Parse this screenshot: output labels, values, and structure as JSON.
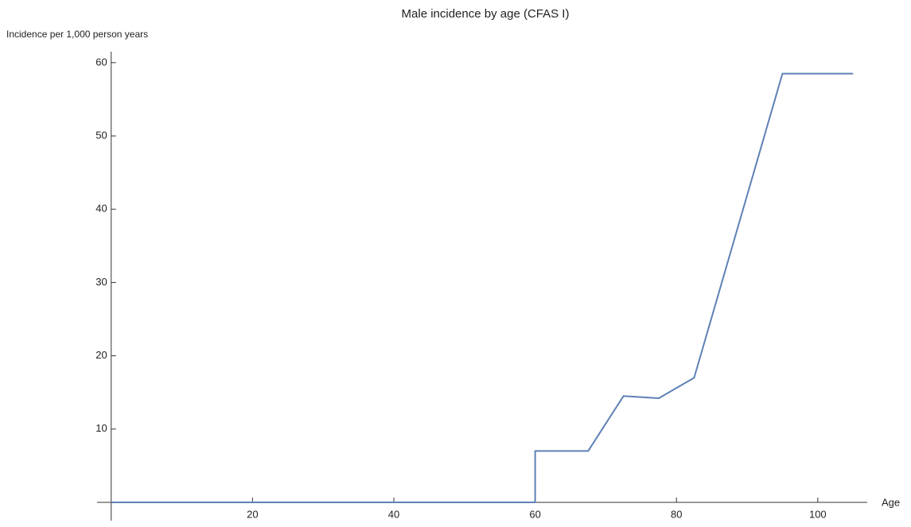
{
  "chart_data": {
    "type": "line",
    "title": "Male incidence by age (CFAS I)",
    "y_label": "Incidence per 1,000 person years",
    "x_label": "Age",
    "x": [
      0,
      60,
      60,
      67.5,
      72.5,
      77.5,
      82.5,
      95,
      105
    ],
    "series": [
      {
        "name": "Male incidence",
        "color": "#5e81b5",
        "values": [
          0,
          0,
          7,
          7,
          14.5,
          14.2,
          17,
          58.5,
          58.5
        ]
      }
    ],
    "xlim": [
      -2,
      107
    ],
    "ylim": [
      -2.5,
      61.5
    ],
    "xticks": [
      20,
      40,
      60,
      80,
      100
    ],
    "yticks": [
      10,
      20,
      30,
      40,
      50,
      60
    ]
  }
}
